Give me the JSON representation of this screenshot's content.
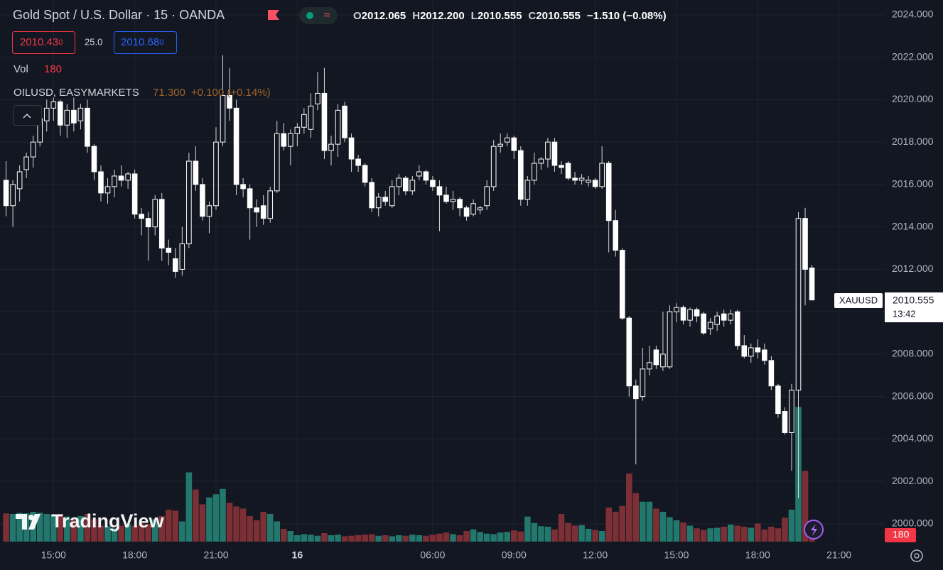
{
  "chart_data": {
    "type": "candlestick",
    "title": "Gold Spot / U.S. Dollar · 15 · OANDA",
    "ohlc_legend": [
      {
        "label": "O",
        "value": "2012.065"
      },
      {
        "label": "H",
        "value": "2012.200"
      },
      {
        "label": "L",
        "value": "2010.555"
      },
      {
        "label": "C",
        "value": "2010.555"
      }
    ],
    "change": "−1.510 (−0.08%)",
    "bid": {
      "price": "2010.43",
      "pip": "0"
    },
    "spread": "25.0",
    "ask": {
      "price": "2010.68",
      "pip": "0"
    },
    "volume_label": "Vol",
    "compare": {
      "name": "OILUSD, EASYMARKETS",
      "value": "71.300",
      "change": "+0.100 (+0.14%)"
    },
    "symbol": "XAUUSD",
    "countdown": "13:42",
    "brand": "TradingView",
    "grid": true,
    "ylim": [
      1999.16,
      2024.7
    ],
    "yticks": [
      {
        "value": 2000,
        "label": "2000.000"
      },
      {
        "value": 2002,
        "label": "2002.000"
      },
      {
        "value": 2004,
        "label": "2004.000"
      },
      {
        "value": 2006,
        "label": "2006.000"
      },
      {
        "value": 2008,
        "label": "2008.000"
      },
      {
        "value": 2010,
        "label": "2010.000"
      },
      {
        "value": 2012,
        "label": "2012.000"
      },
      {
        "value": 2014,
        "label": "2014.000"
      },
      {
        "value": 2016,
        "label": "2016.000"
      },
      {
        "value": 2018,
        "label": "2018.000"
      },
      {
        "value": 2020,
        "label": "2020.000"
      },
      {
        "value": 2022,
        "label": "2022.000"
      },
      {
        "value": 2024,
        "label": "2024.000"
      }
    ],
    "xlim": [
      -0.9,
      129.75
    ],
    "xticks": [
      {
        "value": 7,
        "label": "15:00"
      },
      {
        "value": 19,
        "label": "18:00"
      },
      {
        "value": 31,
        "label": "21:00"
      },
      {
        "value": 43,
        "label": "16",
        "bold": true
      },
      {
        "value": 63,
        "label": "06:00"
      },
      {
        "value": 75,
        "label": "09:00"
      },
      {
        "value": 87,
        "label": "12:00"
      },
      {
        "value": 99,
        "label": "15:00"
      },
      {
        "value": 111,
        "label": "18:00"
      },
      {
        "value": 123,
        "label": "21:00"
      }
    ],
    "candles": {
      "up_fill": "#131722",
      "up_stroke": "#ffffff",
      "down_fill": "#ffffff",
      "wick_color": "#d8d8d8",
      "open": [
        2016.2,
        2015.0,
        2015.8,
        2016.7,
        2017.3,
        2018.0,
        2019.0,
        2019.6,
        2019.9,
        2018.8,
        2019.5,
        2019.0,
        2019.6,
        2017.8,
        2016.6,
        2015.6,
        2015.9,
        2016.4,
        2016.2,
        2016.5,
        2014.6,
        2014.4,
        2014.0,
        2015.3,
        2013.0,
        2012.5,
        2012.0,
        2013.2,
        2017.1,
        2016.0,
        2014.5,
        2015.0,
        2018.0,
        2020.2,
        2019.6,
        2016.0,
        2015.8,
        2014.9,
        2015.0,
        2014.4,
        2015.7,
        2018.4,
        2017.8,
        2018.4,
        2018.7,
        2018.6,
        2019.8,
        2020.3,
        2017.6,
        2017.9,
        2019.7,
        2018.2,
        2017.2,
        2016.9,
        2016.1,
        2014.9,
        2015.4,
        2015.0,
        2015.9,
        2016.3,
        2015.7,
        2016.4,
        2016.6,
        2016.2,
        2015.9,
        2015.5,
        2015.2,
        2015.3,
        2014.9,
        2014.6,
        2014.8,
        2015.0,
        2015.9,
        2017.8,
        2018.0,
        2018.2,
        2017.6,
        2015.3,
        2016.2,
        2017.0,
        2017.2,
        2018.0,
        2016.9,
        2017.0,
        2016.3,
        2016.2,
        2016.1,
        2016.2,
        2015.9,
        2017.0,
        2014.3,
        2012.9,
        2009.7,
        2006.5,
        2006.0,
        2007.3,
        2008.2,
        2007.4,
        2007.4,
        2010.0,
        2010.2,
        2009.6,
        2010.1,
        2009.9,
        2009.2,
        2009.4,
        2009.9,
        2009.6,
        2010.0,
        2008.4,
        2007.9,
        2008.3,
        2008.2,
        2007.7,
        2006.5,
        2005.3,
        2004.3,
        2006.3,
        2014.4,
        2012.065
      ],
      "high": [
        2017.1,
        2016.2,
        2016.9,
        2017.5,
        2018.3,
        2019.4,
        2020.0,
        2020.1,
        2020.0,
        2019.8,
        2020.1,
        2019.8,
        2020.0,
        2017.9,
        2016.9,
        2016.3,
        2016.7,
        2016.9,
        2016.6,
        2016.7,
        2014.9,
        2014.7,
        2015.5,
        2015.6,
        2013.4,
        2013.0,
        2014.0,
        2017.5,
        2017.8,
        2016.3,
        2015.2,
        2018.7,
        2022.1,
        2021.5,
        2020.0,
        2016.3,
        2016.0,
        2015.3,
        2015.5,
        2015.9,
        2019.0,
        2018.9,
        2018.6,
        2018.9,
        2019.6,
        2020.3,
        2021.3,
        2021.5,
        2018.3,
        2019.8,
        2019.9,
        2018.4,
        2017.4,
        2017.0,
        2016.3,
        2015.6,
        2015.7,
        2016.2,
        2016.5,
        2016.4,
        2016.4,
        2016.9,
        2016.7,
        2016.4,
        2016.2,
        2015.9,
        2015.7,
        2015.4,
        2015.0,
        2015.3,
        2015.0,
        2016.2,
        2018.1,
        2018.4,
        2018.4,
        2018.3,
        2017.8,
        2016.4,
        2017.5,
        2017.3,
        2018.2,
        2018.2,
        2017.1,
        2017.1,
        2016.6,
        2016.5,
        2016.4,
        2016.3,
        2017.8,
        2017.1,
        2014.8,
        2013.0,
        2009.8,
        2006.8,
        2008.3,
        2008.4,
        2008.4,
        2010.0,
        2010.3,
        2010.4,
        2010.3,
        2010.2,
        2010.2,
        2010.0,
        2009.7,
        2010.0,
        2010.1,
        2010.1,
        2010.1,
        2008.9,
        2008.5,
        2008.7,
        2008.5,
        2007.9,
        2006.6,
        2005.5,
        2006.6,
        2014.7,
        2014.9,
        2012.2
      ],
      "low": [
        2014.5,
        2014.0,
        2015.2,
        2016.3,
        2016.8,
        2017.8,
        2018.5,
        2019.0,
        2018.3,
        2018.2,
        2018.5,
        2018.6,
        2017.5,
        2016.2,
        2015.2,
        2015.1,
        2015.4,
        2015.9,
        2015.8,
        2014.4,
        2013.6,
        2012.4,
        2013.6,
        2012.4,
        2012.2,
        2011.6,
        2011.7,
        2013.0,
        2015.7,
        2014.3,
        2013.7,
        2014.8,
        2017.8,
        2019.0,
        2015.5,
        2015.4,
        2013.4,
        2014.0,
        2014.1,
        2014.2,
        2015.6,
        2017.6,
        2016.9,
        2017.8,
        2018.4,
        2018.2,
        2019.5,
        2017.2,
        2016.9,
        2017.3,
        2018.0,
        2016.6,
        2016.6,
        2015.9,
        2014.7,
        2014.5,
        2015.0,
        2014.9,
        2015.5,
        2015.5,
        2015.5,
        2016.2,
        2016.0,
        2015.7,
        2013.8,
        2015.1,
        2014.8,
        2014.5,
        2014.3,
        2014.5,
        2014.6,
        2014.8,
        2015.7,
        2017.5,
        2017.8,
        2017.2,
        2015.0,
        2015.0,
        2016.0,
        2016.7,
        2016.8,
        2016.6,
        2016.5,
        2016.2,
        2016.0,
        2016.0,
        2015.9,
        2015.8,
        2015.8,
        2012.8,
        2012.6,
        2009.6,
        2006.0,
        2002.8,
        2005.8,
        2007.0,
        2007.3,
        2007.2,
        2007.3,
        2009.5,
        2009.4,
        2009.3,
        2009.5,
        2008.9,
        2008.9,
        2009.1,
        2009.3,
        2009.4,
        2008.2,
        2007.8,
        2007.6,
        2007.8,
        2007.5,
        2006.3,
        2005.0,
        2004.2,
        2002.5,
        2001.2,
        2010.3,
        2010.555
      ],
      "close": [
        2015.0,
        2016.0,
        2016.6,
        2017.3,
        2018.0,
        2019.1,
        2019.6,
        2019.9,
        2018.8,
        2019.5,
        2018.9,
        2019.6,
        2017.8,
        2016.6,
        2015.6,
        2015.9,
        2016.4,
        2016.2,
        2016.5,
        2014.6,
        2014.4,
        2014.0,
        2015.3,
        2013.0,
        2012.8,
        2011.9,
        2013.2,
        2017.1,
        2016.0,
        2014.5,
        2015.0,
        2018.0,
        2020.2,
        2019.6,
        2016.0,
        2015.8,
        2014.9,
        2014.7,
        2014.4,
        2015.7,
        2018.4,
        2017.8,
        2018.4,
        2018.7,
        2019.3,
        2019.7,
        2020.3,
        2017.6,
        2017.9,
        2019.5,
        2018.2,
        2017.2,
        2016.9,
        2016.1,
        2014.9,
        2015.4,
        2015.2,
        2015.9,
        2016.3,
        2015.7,
        2016.2,
        2016.6,
        2016.2,
        2015.9,
        2015.5,
        2015.2,
        2015.3,
        2014.9,
        2014.5,
        2015.1,
        2014.9,
        2015.9,
        2017.8,
        2017.9,
        2018.2,
        2017.6,
        2015.3,
        2016.2,
        2017.0,
        2017.2,
        2018.0,
        2016.9,
        2016.8,
        2016.3,
        2016.2,
        2016.3,
        2016.2,
        2015.9,
        2017.0,
        2014.3,
        2012.9,
        2009.7,
        2006.5,
        2005.9,
        2007.3,
        2007.6,
        2007.5,
        2008.0,
        2010.0,
        2010.2,
        2009.6,
        2010.1,
        2009.8,
        2009.0,
        2009.5,
        2009.8,
        2009.6,
        2009.9,
        2008.4,
        2007.9,
        2008.3,
        2008.1,
        2007.7,
        2006.5,
        2005.2,
        2004.3,
        2006.3,
        2014.4,
        2012.0,
        2010.555
      ]
    },
    "volume": {
      "up_color": "#23786d",
      "down_color": "#7c2f35",
      "tag_color": "#f23645",
      "ylim": [
        0,
        4000
      ],
      "values": [
        530,
        520,
        540,
        530,
        560,
        540,
        520,
        500,
        520,
        470,
        430,
        480,
        520,
        420,
        300,
        290,
        250,
        300,
        330,
        300,
        340,
        330,
        420,
        480,
        600,
        580,
        380,
        1300,
        980,
        700,
        830,
        890,
        990,
        730,
        660,
        620,
        480,
        400,
        560,
        520,
        380,
        240,
        200,
        120,
        140,
        130,
        110,
        160,
        120,
        130,
        100,
        110,
        120,
        130,
        140,
        110,
        120,
        100,
        120,
        110,
        130,
        120,
        110,
        130,
        150,
        170,
        140,
        120,
        200,
        230,
        180,
        150,
        140,
        170,
        180,
        210,
        190,
        470,
        350,
        290,
        280,
        230,
        520,
        350,
        300,
        310,
        240,
        220,
        200,
        640,
        560,
        670,
        1280,
        910,
        750,
        750,
        620,
        560,
        460,
        400,
        360,
        300,
        250,
        220,
        250,
        260,
        280,
        320,
        300,
        280,
        260,
        340,
        230,
        280,
        250,
        450,
        600,
        2530,
        1330,
        180
      ]
    }
  }
}
